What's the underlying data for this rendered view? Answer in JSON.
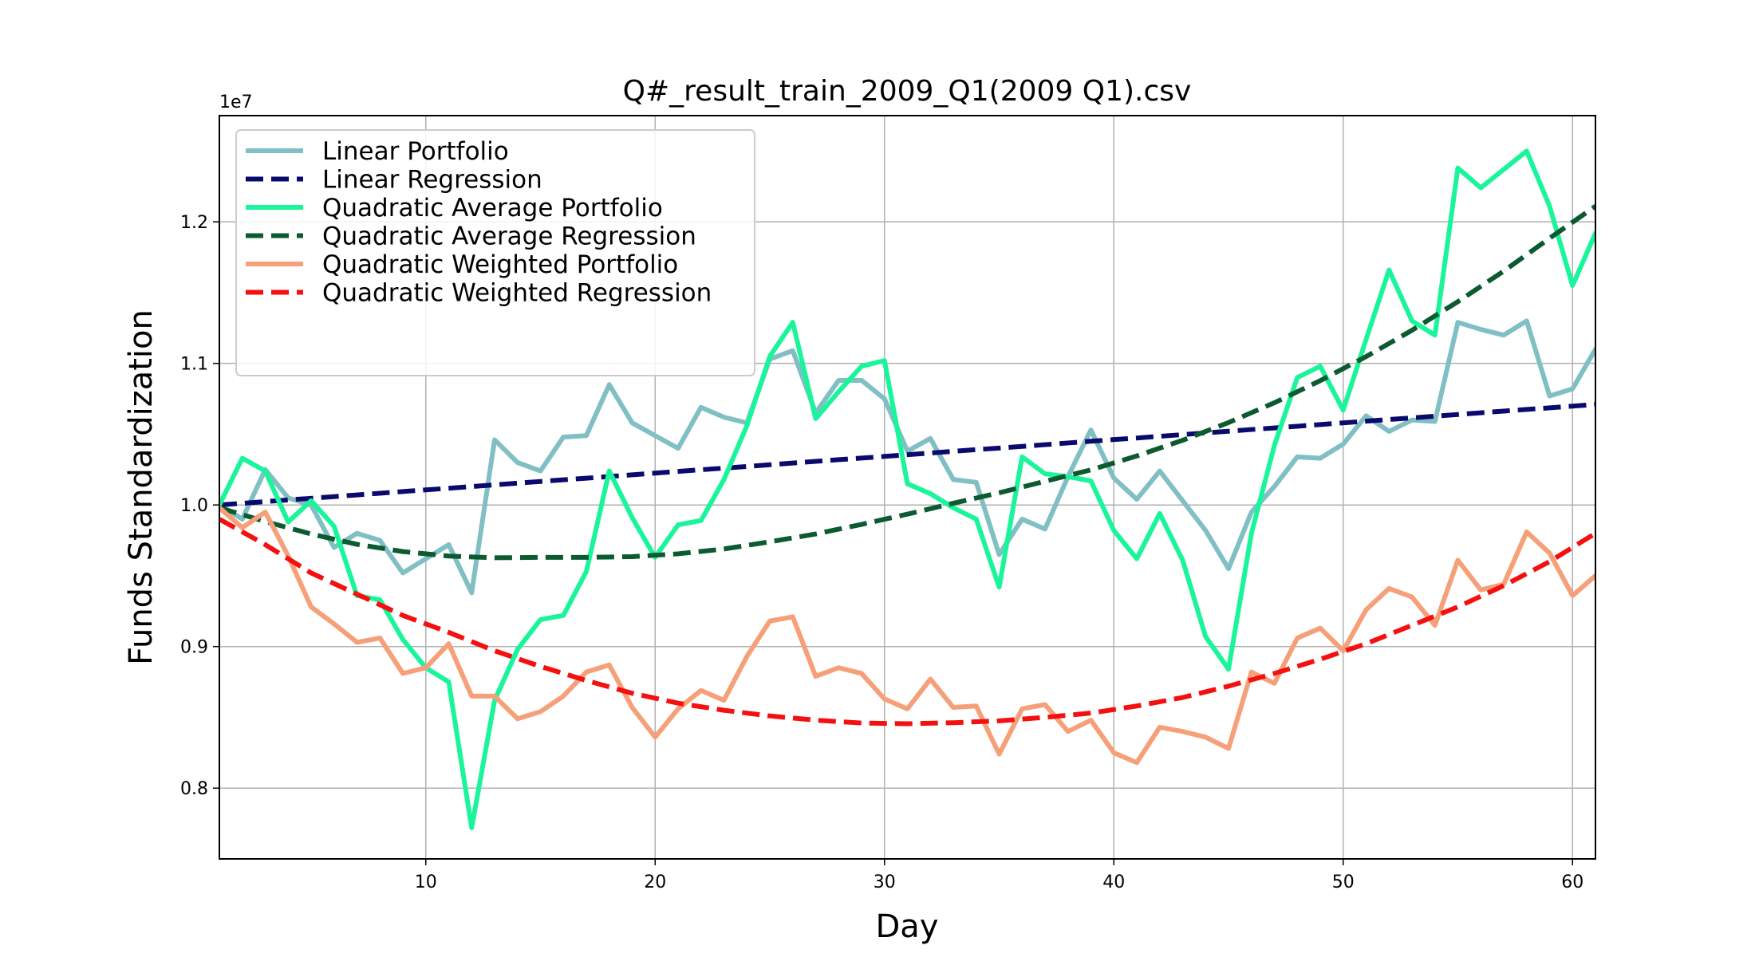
{
  "chart_data": {
    "type": "line",
    "title": "Q#_result_train_2009_Q1(2009 Q1).csv",
    "xlabel": "Day",
    "ylabel": "Funds Standardization",
    "y_offset_label": "1e7",
    "xlim": [
      1,
      61
    ],
    "ylim": [
      0.75,
      1.275
    ],
    "x_ticks": [
      10,
      20,
      30,
      40,
      50,
      60
    ],
    "y_ticks": [
      0.8,
      0.9,
      1.0,
      1.1,
      1.2
    ],
    "x_tick_labels": [
      "10",
      "20",
      "30",
      "40",
      "50",
      "60"
    ],
    "y_tick_labels": [
      "0.8",
      "0.9",
      "1.0",
      "1.1",
      "1.2"
    ],
    "grid": true,
    "legend_position": "upper-left",
    "series": [
      {
        "name": "Linear Portfolio",
        "color": "#80bfc4",
        "style": "solid",
        "x": [
          1,
          2,
          3,
          4,
          5,
          6,
          7,
          8,
          9,
          10,
          11,
          12,
          13,
          14,
          15,
          16,
          17,
          18,
          19,
          20,
          21,
          22,
          23,
          24,
          25,
          26,
          27,
          28,
          29,
          30,
          31,
          32,
          33,
          34,
          35,
          36,
          37,
          38,
          39,
          40,
          41,
          42,
          43,
          44,
          45,
          46,
          47,
          48,
          49,
          50,
          51,
          52,
          53,
          54,
          55,
          56,
          57,
          58,
          59,
          60,
          61
        ],
        "values": [
          1.0,
          0.99,
          1.025,
          1.005,
          1.0,
          0.97,
          0.98,
          0.975,
          0.952,
          0.962,
          0.972,
          0.938,
          1.046,
          1.03,
          1.024,
          1.048,
          1.049,
          1.085,
          1.058,
          1.049,
          1.04,
          1.069,
          1.062,
          1.058,
          1.103,
          1.109,
          1.065,
          1.088,
          1.088,
          1.075,
          1.038,
          1.047,
          1.018,
          1.016,
          0.965,
          0.99,
          0.983,
          1.02,
          1.053,
          1.019,
          1.004,
          1.024,
          1.003,
          0.982,
          0.955,
          0.995,
          1.013,
          1.034,
          1.033,
          1.043,
          1.063,
          1.052,
          1.06,
          1.059,
          1.129,
          1.124,
          1.12,
          1.13,
          1.077,
          1.082,
          1.11
        ]
      },
      {
        "name": "Linear Regression",
        "color": "#0a0a6e",
        "style": "dashed",
        "x": [
          1,
          2,
          3,
          4,
          5,
          6,
          7,
          8,
          9,
          10,
          11,
          12,
          13,
          14,
          15,
          16,
          17,
          18,
          19,
          20,
          21,
          22,
          23,
          24,
          25,
          26,
          27,
          28,
          29,
          30,
          31,
          32,
          33,
          34,
          35,
          36,
          37,
          38,
          39,
          40,
          41,
          42,
          43,
          44,
          45,
          46,
          47,
          48,
          49,
          50,
          51,
          52,
          53,
          54,
          55,
          56,
          57,
          58,
          59,
          60,
          61
        ],
        "values": [
          1.0,
          1.0012,
          1.0024,
          1.0036,
          1.0047,
          1.0059,
          1.0071,
          1.0083,
          1.0095,
          1.0107,
          1.0118,
          1.013,
          1.0142,
          1.0154,
          1.0166,
          1.0178,
          1.0189,
          1.0201,
          1.0213,
          1.0225,
          1.0237,
          1.0249,
          1.026,
          1.0272,
          1.0284,
          1.0296,
          1.0308,
          1.032,
          1.0331,
          1.0343,
          1.0355,
          1.0367,
          1.0379,
          1.0391,
          1.0402,
          1.0414,
          1.0426,
          1.0438,
          1.045,
          1.0462,
          1.0473,
          1.0485,
          1.0497,
          1.0509,
          1.0521,
          1.0533,
          1.0544,
          1.0556,
          1.0568,
          1.058,
          1.0592,
          1.0604,
          1.0615,
          1.0627,
          1.0639,
          1.0651,
          1.0663,
          1.0675,
          1.0686,
          1.0698,
          1.071
        ]
      },
      {
        "name": "Quadratic Average Portfolio",
        "color": "#1af59c",
        "style": "solid",
        "x": [
          1,
          2,
          3,
          4,
          5,
          6,
          7,
          8,
          9,
          10,
          11,
          12,
          13,
          14,
          15,
          16,
          17,
          18,
          19,
          20,
          21,
          22,
          23,
          24,
          25,
          26,
          27,
          28,
          29,
          30,
          31,
          32,
          33,
          34,
          35,
          36,
          37,
          38,
          39,
          40,
          41,
          42,
          43,
          44,
          45,
          46,
          47,
          48,
          49,
          50,
          51,
          52,
          53,
          54,
          55,
          56,
          57,
          58,
          59,
          60,
          61
        ],
        "values": [
          1.0,
          1.033,
          1.024,
          0.988,
          1.003,
          0.985,
          0.936,
          0.933,
          0.905,
          0.885,
          0.875,
          0.772,
          0.862,
          0.898,
          0.919,
          0.922,
          0.953,
          1.024,
          0.991,
          0.963,
          0.986,
          0.989,
          1.018,
          1.056,
          1.105,
          1.129,
          1.061,
          1.08,
          1.098,
          1.102,
          1.015,
          1.008,
          0.998,
          0.99,
          0.942,
          1.034,
          1.022,
          1.02,
          1.017,
          0.982,
          0.962,
          0.994,
          0.961,
          0.907,
          0.884,
          0.98,
          1.042,
          1.09,
          1.098,
          1.067,
          1.117,
          1.166,
          1.13,
          1.12,
          1.238,
          1.224,
          1.237,
          1.25,
          1.211,
          1.155,
          1.192
        ]
      },
      {
        "name": "Quadratic Average Regression",
        "color": "#0b5a30",
        "style": "dashed",
        "x": [
          1,
          3,
          5,
          7,
          9,
          11,
          13,
          15,
          17,
          19,
          21,
          23,
          25,
          27,
          29,
          31,
          33,
          35,
          37,
          39,
          41,
          43,
          45,
          47,
          49,
          51,
          53,
          55,
          57,
          59,
          61
        ],
        "values": [
          0.998,
          0.9883,
          0.9795,
          0.9722,
          0.9671,
          0.9639,
          0.9627,
          0.963,
          0.963,
          0.9635,
          0.9655,
          0.9689,
          0.974,
          0.9795,
          0.9863,
          0.9935,
          1.0012,
          1.0086,
          1.0167,
          1.0248,
          1.0346,
          1.0457,
          1.0582,
          1.0722,
          1.0878,
          1.1048,
          1.1234,
          1.1436,
          1.1652,
          1.1884,
          1.211
        ]
      },
      {
        "name": "Quadratic Weighted Portfolio",
        "color": "#f6a079",
        "style": "solid",
        "x": [
          1,
          2,
          3,
          4,
          5,
          6,
          7,
          8,
          9,
          10,
          11,
          12,
          13,
          14,
          15,
          16,
          17,
          18,
          19,
          20,
          21,
          22,
          23,
          24,
          25,
          26,
          27,
          28,
          29,
          30,
          31,
          32,
          33,
          34,
          35,
          36,
          37,
          38,
          39,
          40,
          41,
          42,
          43,
          44,
          45,
          46,
          47,
          48,
          49,
          50,
          51,
          52,
          53,
          54,
          55,
          56,
          57,
          58,
          59,
          60,
          61
        ],
        "values": [
          0.998,
          0.984,
          0.995,
          0.964,
          0.928,
          0.916,
          0.903,
          0.906,
          0.881,
          0.885,
          0.902,
          0.865,
          0.865,
          0.849,
          0.854,
          0.865,
          0.882,
          0.887,
          0.857,
          0.836,
          0.856,
          0.869,
          0.862,
          0.893,
          0.918,
          0.921,
          0.879,
          0.885,
          0.881,
          0.863,
          0.856,
          0.877,
          0.857,
          0.858,
          0.824,
          0.856,
          0.859,
          0.84,
          0.848,
          0.825,
          0.818,
          0.843,
          0.84,
          0.836,
          0.828,
          0.882,
          0.874,
          0.906,
          0.913,
          0.897,
          0.926,
          0.941,
          0.935,
          0.915,
          0.961,
          0.94,
          0.944,
          0.981,
          0.966,
          0.936,
          0.95
        ]
      },
      {
        "name": "Quadratic Weighted Regression",
        "color": "#f51010",
        "style": "dashed",
        "x": [
          1,
          3,
          5,
          7,
          9,
          11,
          13,
          15,
          17,
          19,
          21,
          23,
          25,
          27,
          29,
          31,
          33,
          35,
          37,
          39,
          41,
          43,
          45,
          47,
          49,
          51,
          53,
          55,
          57,
          59,
          61
        ],
        "values": [
          0.99,
          0.972,
          0.952,
          0.937,
          0.922,
          0.91,
          0.897,
          0.886,
          0.876,
          0.867,
          0.86,
          0.855,
          0.851,
          0.848,
          0.846,
          0.8455,
          0.8462,
          0.8475,
          0.85,
          0.853,
          0.858,
          0.864,
          0.872,
          0.881,
          0.891,
          0.902,
          0.915,
          0.928,
          0.943,
          0.96,
          0.98
        ]
      }
    ]
  }
}
